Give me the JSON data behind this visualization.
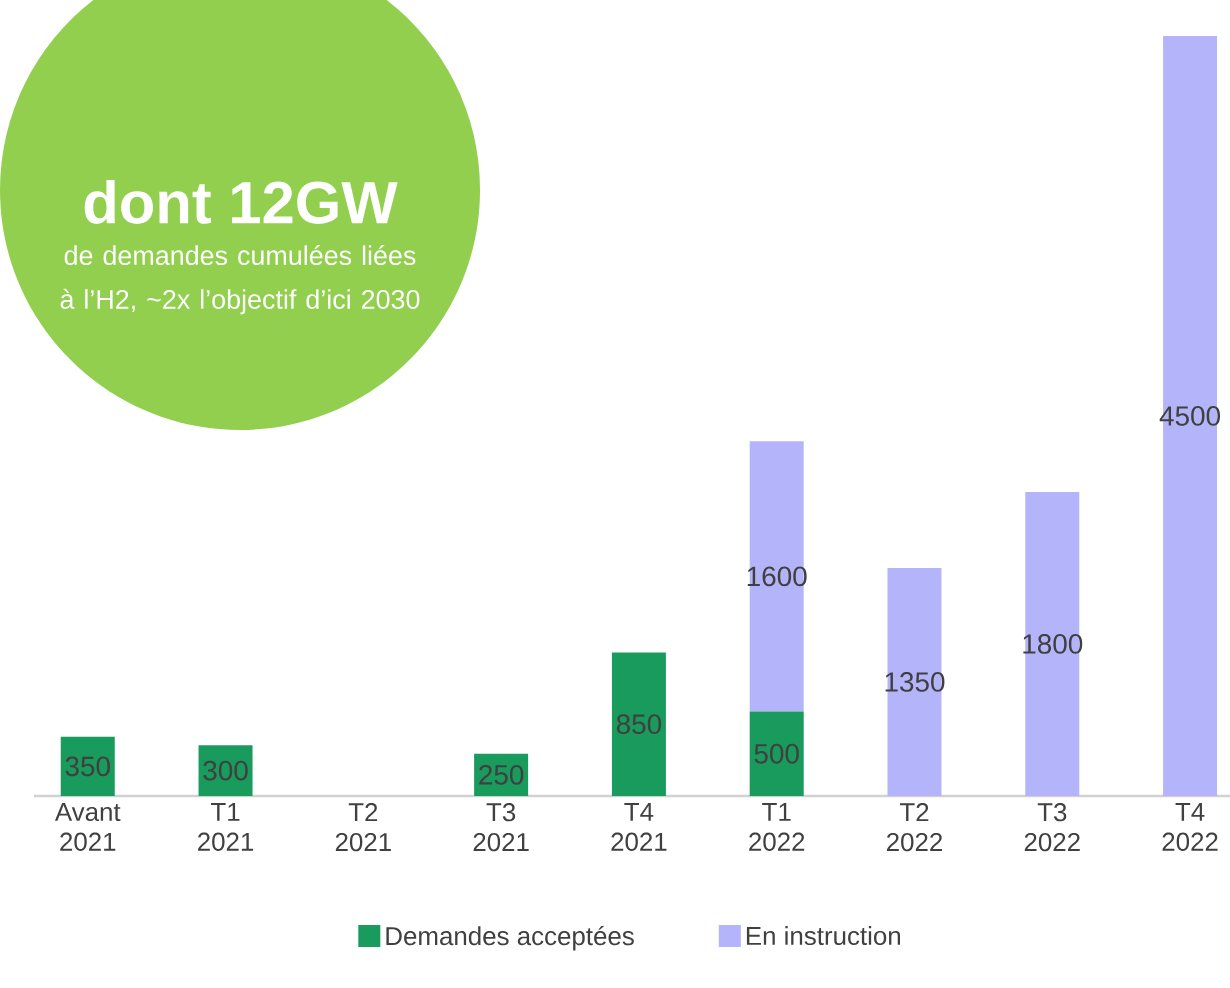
{
  "chart_data": {
    "type": "bar",
    "stacked": true,
    "data_labels": true,
    "legend": "bottom",
    "categories": [
      "Avant 2021",
      "T1 2021",
      "T2 2021",
      "T3 2021",
      "T4 2021",
      "T1 2022",
      "T2 2022",
      "T3 2022",
      "T4 2022"
    ],
    "series": [
      {
        "name": "Demandes acceptées",
        "color": "#189b5c",
        "values": [
          350,
          300,
          null,
          250,
          850,
          500,
          null,
          null,
          null
        ]
      },
      {
        "name": "En instruction",
        "color": "#b4b4fa",
        "values": [
          null,
          null,
          null,
          null,
          null,
          1600,
          1350,
          1800,
          4500
        ]
      }
    ],
    "annotations": [
      "dont 12GW",
      "de demandes cumulées liées à l’H2, ~2x l’objectif d’ici 2030"
    ]
  }
}
